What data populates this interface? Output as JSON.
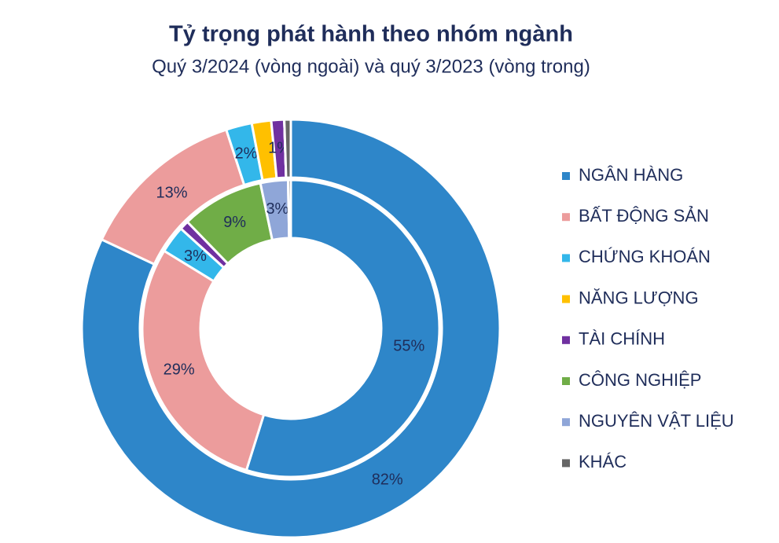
{
  "chart_data": {
    "type": "donut",
    "title": "Tỷ trọng phát hành theo nhóm ngành",
    "subtitle": "Quý 3/2024 (vòng ngoài) và quý 3/2023 (vòng trong)",
    "categories": [
      "NGÂN HÀNG",
      "BẤT ĐỘNG SẢN",
      "CHỨNG KHOÁN",
      "NĂNG LƯỢNG",
      "TÀI CHÍNH",
      "CÔNG NGHIỆP",
      "NGUYÊN VẬT LIỆU",
      "KHÁC"
    ],
    "colors": [
      "#2e86c9",
      "#ec9c9c",
      "#33b7ea",
      "#ffc000",
      "#7030a0",
      "#70ad47",
      "#8fa6d8",
      "#666666"
    ],
    "series": [
      {
        "values": [
          82,
          13,
          2,
          1.5,
          1,
          0,
          0,
          0.5
        ],
        "value_labels": [
          "82%",
          "13%",
          "2%",
          null,
          "1%",
          null,
          null,
          null
        ]
      },
      {
        "values": [
          55,
          29,
          3,
          0,
          1,
          9,
          3,
          0.3
        ],
        "value_labels": [
          "55%",
          "29%",
          "3%",
          null,
          null,
          "9%",
          "3%",
          null
        ]
      }
    ],
    "legend": "right"
  }
}
